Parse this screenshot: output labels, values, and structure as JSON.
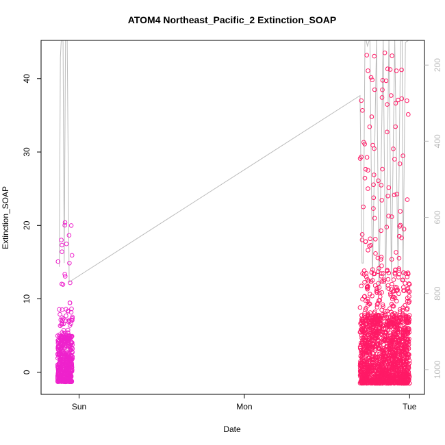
{
  "chart_data": {
    "type": "scatter",
    "title": "ATOM4 Northeast_Pacific_2 Extinction_SOAP",
    "xlabel": "Date",
    "ylabel": "Extinction_SOAP",
    "x_unit": "days from Sun 00:00",
    "xlim": [
      -0.23,
      2.09
    ],
    "ylim": [
      -3,
      45.2
    ],
    "x_tick_labels": [
      "Sun",
      "Mon",
      "Tue"
    ],
    "x_tick_values": [
      0,
      1,
      2
    ],
    "y_ticks": [
      0,
      10,
      20,
      30,
      40
    ],
    "y2_label_hidden": true,
    "y2_ticks": [
      200,
      400,
      600,
      800,
      1000
    ],
    "y2_lim_top_to_bottom": [
      135,
      1065
    ],
    "grid": false,
    "legend": "none",
    "colors": {
      "sun_cluster": "#ee22cc",
      "tue_cluster": "#ff1a66",
      "altitude_line": "#bbbbbb",
      "axis": "#000000",
      "right_axis": "#bbbbbb"
    },
    "series": [
      {
        "kind": "points",
        "clusters": [
          {
            "x_range": [
              -0.13,
              -0.04
            ],
            "typical_y": [
              -1.3,
              9.5
            ],
            "outliers_max": 20.4,
            "count": 500
          },
          {
            "x_range": [
              1.7,
              2.0
            ],
            "typical_y": [
              -1.5,
              14
            ],
            "outliers_max": 43.5,
            "count": 1600
          }
        ]
      },
      {
        "kind": "altitude",
        "axis": "right",
        "points": [
          [
            -0.12,
            730
          ],
          [
            -0.113,
            180
          ],
          [
            -0.105,
            110
          ],
          [
            -0.097,
            140
          ],
          [
            -0.09,
            720
          ],
          [
            -0.082,
            130
          ],
          [
            -0.072,
            125
          ],
          [
            -0.06,
            770
          ],
          [
            1.7,
            280
          ],
          [
            1.712,
            720
          ],
          [
            1.72,
            720
          ],
          [
            1.73,
            120
          ],
          [
            1.745,
            150
          ],
          [
            1.76,
            130
          ],
          [
            1.775,
            770
          ],
          [
            1.8,
            130
          ],
          [
            1.815,
            800
          ],
          [
            1.84,
            130
          ],
          [
            1.855,
            790
          ],
          [
            1.875,
            130
          ],
          [
            1.89,
            760
          ],
          [
            1.91,
            130
          ],
          [
            1.93,
            740
          ],
          [
            1.945,
            140
          ],
          [
            1.955,
            130
          ],
          [
            1.96,
            770
          ],
          [
            1.975,
            140
          ],
          [
            1.995,
            135
          ]
        ]
      }
    ]
  }
}
